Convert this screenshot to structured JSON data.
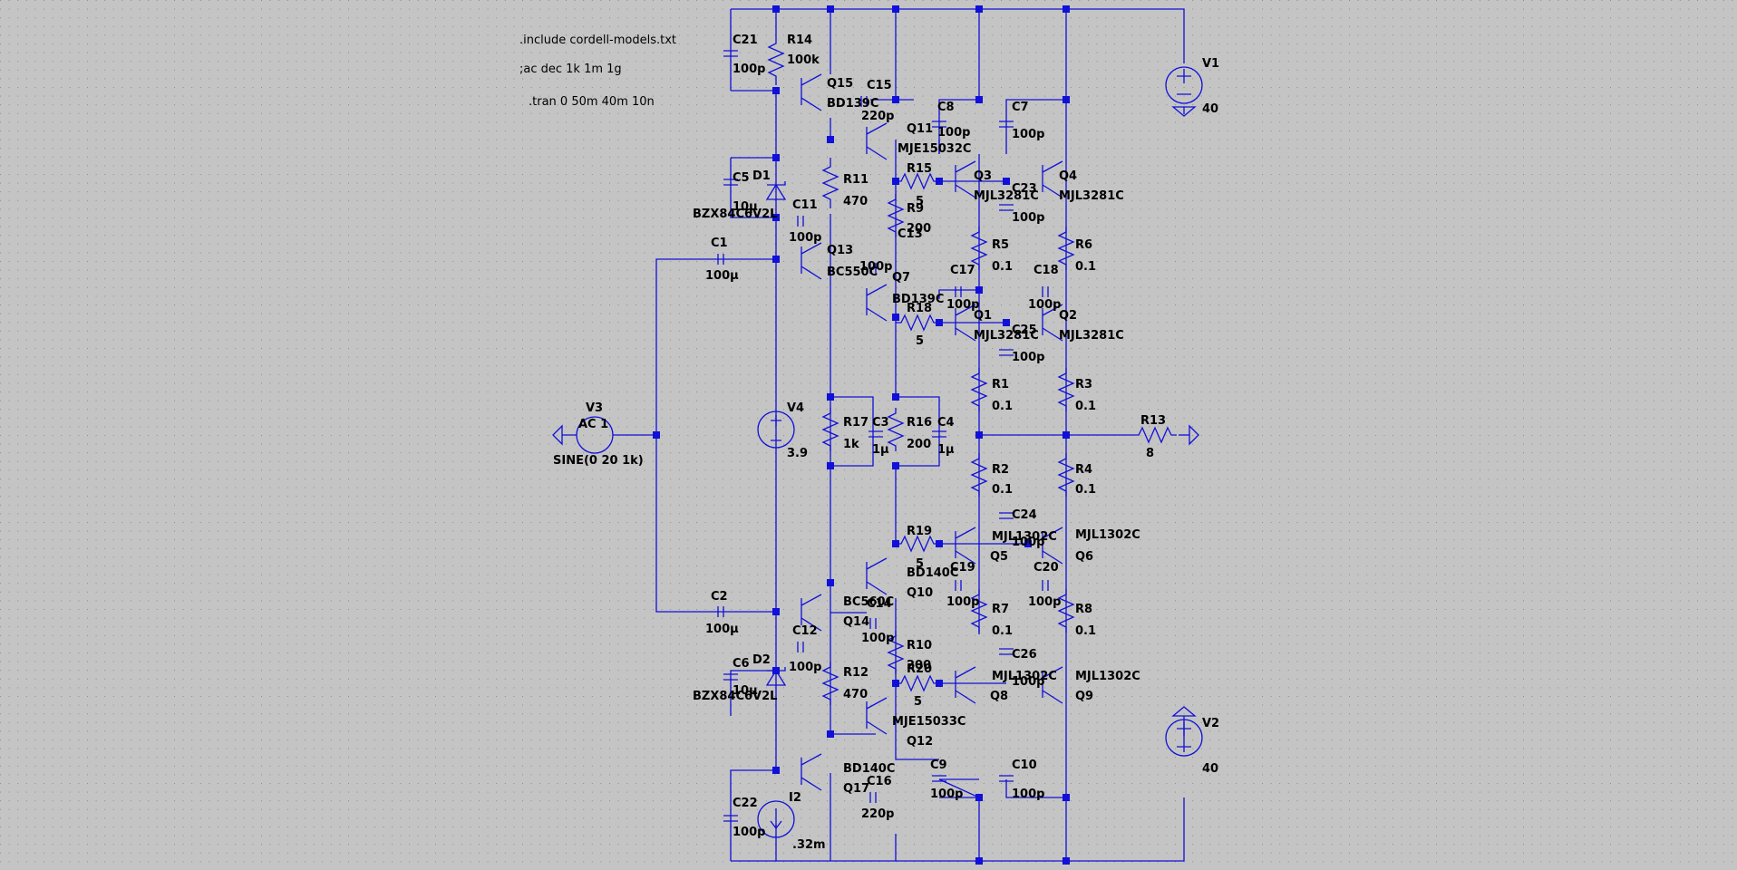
{
  "schematic": {
    "directives": [
      ".include cordell-models.txt",
      ";ac dec 1k 1m 1g",
      ".tran 0 50m 40m 10n"
    ],
    "sources": [
      {
        "ref": "V1",
        "value": "40"
      },
      {
        "ref": "V2",
        "value": "40"
      },
      {
        "ref": "V3",
        "value": "SINE(0 20 1k)",
        "ac": "AC 1"
      },
      {
        "ref": "V4",
        "value": "3.9"
      },
      {
        "ref": "I2",
        "value": ".32m"
      }
    ],
    "resistors": [
      {
        "ref": "R14",
        "value": "100k"
      },
      {
        "ref": "R11",
        "value": "470"
      },
      {
        "ref": "R9",
        "value": "200"
      },
      {
        "ref": "R15",
        "value": "5"
      },
      {
        "ref": "R5",
        "value": "0.1"
      },
      {
        "ref": "R6",
        "value": "0.1"
      },
      {
        "ref": "R18",
        "value": "5"
      },
      {
        "ref": "R1",
        "value": "0.1"
      },
      {
        "ref": "R3",
        "value": "0.1"
      },
      {
        "ref": "R17",
        "value": "1k"
      },
      {
        "ref": "R16",
        "value": "200"
      },
      {
        "ref": "R13",
        "value": "8"
      },
      {
        "ref": "R2",
        "value": "0.1"
      },
      {
        "ref": "R4",
        "value": "0.1"
      },
      {
        "ref": "R19",
        "value": "5"
      },
      {
        "ref": "R7",
        "value": "0.1"
      },
      {
        "ref": "R8",
        "value": "0.1"
      },
      {
        "ref": "R10",
        "value": "200"
      },
      {
        "ref": "R20",
        "value": "5"
      },
      {
        "ref": "R12",
        "value": "470"
      }
    ],
    "capacitors": [
      {
        "ref": "C21",
        "value": "100p"
      },
      {
        "ref": "C15",
        "value": "220p"
      },
      {
        "ref": "C8",
        "value": "100p"
      },
      {
        "ref": "C7",
        "value": "100p"
      },
      {
        "ref": "C5",
        "value": "10µ"
      },
      {
        "ref": "C11",
        "value": "100p"
      },
      {
        "ref": "C23",
        "value": "100p"
      },
      {
        "ref": "C13",
        "value": "100p"
      },
      {
        "ref": "C1",
        "value": "100µ"
      },
      {
        "ref": "C17",
        "value": "100p"
      },
      {
        "ref": "C18",
        "value": "100p"
      },
      {
        "ref": "C25",
        "value": "100p"
      },
      {
        "ref": "C3",
        "value": "1µ"
      },
      {
        "ref": "C4",
        "value": "1µ"
      },
      {
        "ref": "C24",
        "value": "100p"
      },
      {
        "ref": "C19",
        "value": "100p"
      },
      {
        "ref": "C20",
        "value": "100p"
      },
      {
        "ref": "C2",
        "value": "100µ"
      },
      {
        "ref": "C14",
        "value": "100p"
      },
      {
        "ref": "C12",
        "value": "100p"
      },
      {
        "ref": "C6",
        "value": "10µ"
      },
      {
        "ref": "C26",
        "value": "100p"
      },
      {
        "ref": "C9",
        "value": "100p"
      },
      {
        "ref": "C10",
        "value": "100p"
      },
      {
        "ref": "C22",
        "value": "100p"
      },
      {
        "ref": "C16",
        "value": "220p"
      }
    ],
    "transistors": [
      {
        "ref": "Q15",
        "model": "BD139C"
      },
      {
        "ref": "Q11",
        "model": "MJE15032C"
      },
      {
        "ref": "Q3",
        "model": "MJL3281C"
      },
      {
        "ref": "Q4",
        "model": "MJL3281C"
      },
      {
        "ref": "Q13",
        "model": "BC550C"
      },
      {
        "ref": "Q7",
        "model": "BD139C"
      },
      {
        "ref": "Q1",
        "model": "MJL3281C"
      },
      {
        "ref": "Q2",
        "model": "MJL3281C"
      },
      {
        "ref": "Q5",
        "model": "MJL1302C"
      },
      {
        "ref": "Q6",
        "model": "MJL1302C"
      },
      {
        "ref": "Q10",
        "model": "BD140C"
      },
      {
        "ref": "Q14",
        "model": "BC560C"
      },
      {
        "ref": "Q8",
        "model": "MJL1302C"
      },
      {
        "ref": "Q9",
        "model": "MJL1302C"
      },
      {
        "ref": "Q12",
        "model": "MJE15033C"
      },
      {
        "ref": "Q17",
        "model": "BD140C"
      }
    ],
    "diodes": [
      {
        "ref": "D1",
        "model": "BZX84C6V2L"
      },
      {
        "ref": "D2",
        "model": "BZX84C6V2L"
      }
    ]
  }
}
